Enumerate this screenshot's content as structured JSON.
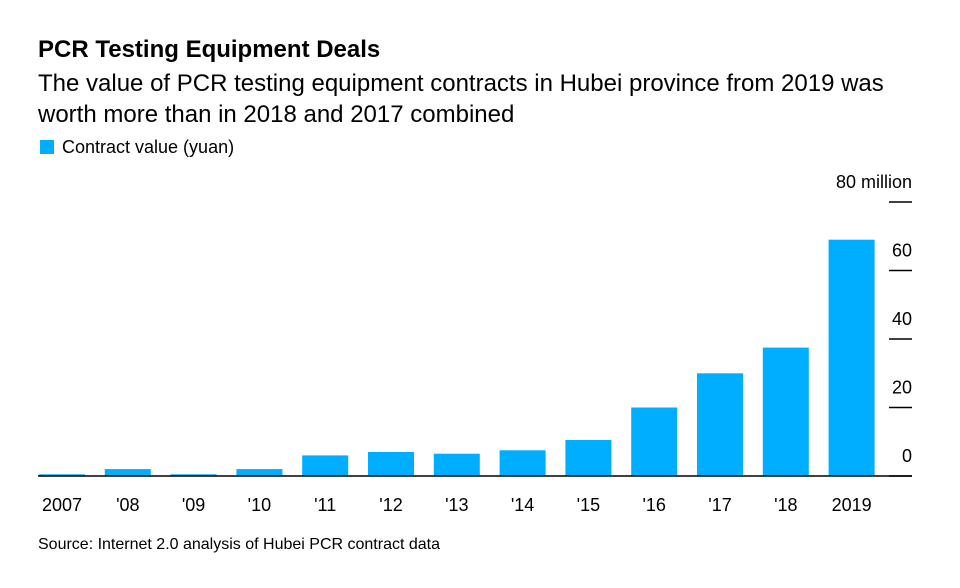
{
  "header": {
    "title": "PCR Testing Equipment Deals",
    "subtitle": "The value of PCR testing equipment contracts in Hubei province from 2019 was worth more than in 2018 and 2017 combined"
  },
  "legend": {
    "label": "Contract value (yuan)",
    "color": "#00aeff"
  },
  "footer": {
    "source": "Source: Internet 2.0 analysis of Hubei PCR contract data"
  },
  "chart_data": {
    "type": "bar",
    "categories": [
      "2007",
      "'08",
      "'09",
      "'10",
      "'11",
      "'12",
      "'13",
      "'14",
      "'15",
      "'16",
      "'17",
      "'18",
      "'19"
    ],
    "category_labels": [
      "2007",
      "'08",
      "'09",
      "'10",
      "'11",
      "'12",
      "'13",
      "'14",
      "'15",
      "'16",
      "'17",
      "'18",
      "2019"
    ],
    "series": [
      {
        "name": "Contract value (yuan)",
        "values": [
          0.5,
          2.0,
          0.5,
          2.0,
          6.0,
          7.0,
          6.5,
          7.5,
          10.5,
          20.0,
          30.0,
          37.5,
          69.0
        ]
      }
    ],
    "y_ticks": [
      0,
      20,
      40,
      60,
      80
    ],
    "y_tick_labels": [
      "0",
      "20",
      "40",
      "60",
      "80 million"
    ],
    "ylim": [
      0,
      80
    ],
    "y_axis_position": "right",
    "grid": false,
    "legend_position": "top-left",
    "bar_color": "#00aeff",
    "axis_color": "#000000"
  }
}
